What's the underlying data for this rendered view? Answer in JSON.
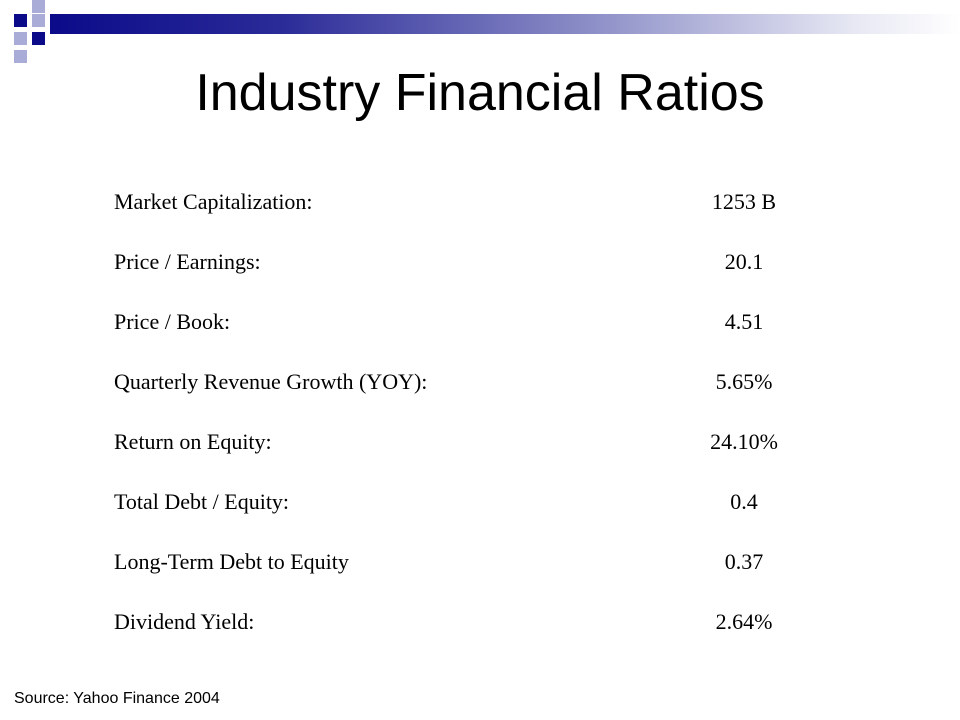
{
  "title": "Industry Financial Ratios",
  "ratios": [
    {
      "label": "Market Capitalization:",
      "value": "1253 B"
    },
    {
      "label": "Price / Earnings:",
      "value": "20.1"
    },
    {
      "label": "Price / Book:",
      "value": "4.51"
    },
    {
      "label": "Quarterly Revenue Growth (YOY):",
      "value": "5.65%"
    },
    {
      "label": "Return on Equity:",
      "value": "24.10%"
    },
    {
      "label": "Total Debt / Equity:",
      "value": "0.4"
    },
    {
      "label": "Long-Term Debt to Equity",
      "value": "0.37"
    },
    {
      "label": "Dividend Yield:",
      "value": "2.64%"
    }
  ],
  "source": "Source: Yahoo Finance 2004",
  "colors": {
    "accent_dark": "#0b0b8a",
    "accent_light": "#a9acd6"
  }
}
